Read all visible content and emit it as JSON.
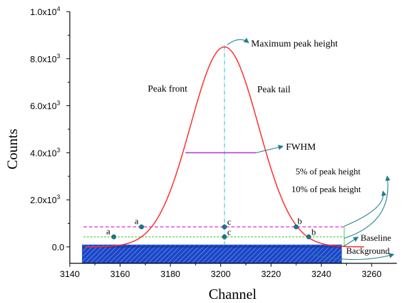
{
  "chart_data": {
    "type": "line",
    "xlabel": "Channel",
    "ylabel": "Counts",
    "xlim": [
      3140,
      3270
    ],
    "ylim": [
      -700,
      10000
    ],
    "x_ticks": [
      3140,
      3160,
      3180,
      3200,
      3220,
      3240,
      3260
    ],
    "y_ticks": [
      {
        "value": 0,
        "mantissa": "0.0",
        "exp": ""
      },
      {
        "value": 2000,
        "mantissa": "2.0x10",
        "exp": "3"
      },
      {
        "value": 4000,
        "mantissa": "4.0x10",
        "exp": "3"
      },
      {
        "value": 6000,
        "mantissa": "6.0x10",
        "exp": "3"
      },
      {
        "value": 8000,
        "mantissa": "8.0x10",
        "exp": "3"
      },
      {
        "value": 10000,
        "mantissa": "1.0x10",
        "exp": "4"
      }
    ],
    "grid": false,
    "peak": {
      "center": 3201.5,
      "height": 8500,
      "sigma": 13.5,
      "x_range": [
        3146,
        3257
      ]
    },
    "series": [
      {
        "type": "peak-curve",
        "color": "#ff2a2a",
        "x": [
          3146,
          3150,
          3155,
          3160,
          3165,
          3170,
          3175,
          3180,
          3185,
          3190,
          3195,
          3200,
          3201.5,
          3205,
          3210,
          3215,
          3220,
          3225,
          3230,
          3235,
          3240,
          3245,
          3250,
          3257
        ],
        "y": [
          0,
          60,
          160,
          330,
          580,
          950,
          1740,
          2960,
          4500,
          6150,
          7580,
          8460,
          8500,
          8220,
          7080,
          5430,
          3680,
          2170,
          1100,
          470,
          170,
          60,
          20,
          0
        ]
      }
    ],
    "fwhm": {
      "label": "FWHM",
      "y": 4000,
      "x_start": 3186,
      "x_end": 3214,
      "color": "#b23ee0"
    },
    "peak_vertical": {
      "x": 3201.5,
      "color": "#33c0d8"
    },
    "level_5pct": {
      "y": 425,
      "color": "#3fcf3f"
    },
    "level_10pct": {
      "y": 850,
      "color": "#e23ee0"
    },
    "background": {
      "x_start": 3145,
      "x_end": 3248,
      "y_top": 80,
      "y_bottom": -680,
      "color": "#1a46c8"
    },
    "points": [
      {
        "label": "a",
        "x": 3157.5,
        "y": 425
      },
      {
        "label": "a",
        "x": 3168.5,
        "y": 850
      },
      {
        "label": "c",
        "x": 3201.5,
        "y": 850
      },
      {
        "label": "c",
        "x": 3201.5,
        "y": 425
      },
      {
        "label": "b",
        "x": 3230,
        "y": 850
      },
      {
        "label": "b",
        "x": 3235,
        "y": 425
      }
    ],
    "annotations": {
      "max_peak": "Maximum peak height",
      "peak_front": "Peak front",
      "peak_tail": "Peak tail",
      "fwhm": "FWHM",
      "five_pct": "5% of peak height",
      "ten_pct": "10% of peak height",
      "baseline": "Baseline",
      "background": "Background"
    }
  }
}
